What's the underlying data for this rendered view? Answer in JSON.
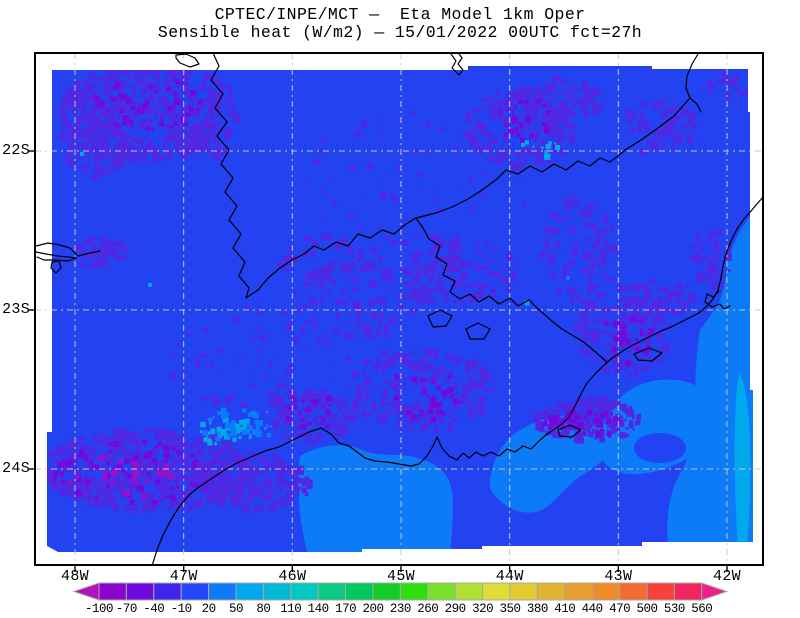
{
  "title": {
    "line1": "CPTEC/INPE/MCT —  Eta Model 1km Oper",
    "line2": "Sensible heat (W/m2) — 15/01/2022 00UTC fct=27h"
  },
  "map_frame": {
    "lat_labels": [
      "22S",
      "23S",
      "24S"
    ],
    "lon_labels": [
      "48W",
      "47W",
      "46W",
      "45W",
      "44W",
      "43W",
      "42W"
    ]
  },
  "colorbar": {
    "unit": "W/m2",
    "labels": [
      "-100",
      "-70",
      "-40",
      "-10",
      "20",
      "50",
      "80",
      "110",
      "140",
      "170",
      "200",
      "230",
      "260",
      "290",
      "320",
      "350",
      "380",
      "410",
      "440",
      "470",
      "500",
      "530",
      "560"
    ],
    "segment_colors": [
      "#8A06CE",
      "#7209DC",
      "#3F24EA",
      "#2547F8",
      "#0D7BF8",
      "#00A8EC",
      "#00B7D4",
      "#00C9C0",
      "#0ACB84",
      "#00C95E",
      "#12CD26",
      "#2FDE0F",
      "#7BE02B",
      "#B0DF35",
      "#DDDC38",
      "#E4CB32",
      "#E3B42F",
      "#EB9E2E",
      "#EE8C2B",
      "#F56A33",
      "#F94139",
      "#F2265F"
    ],
    "arrow_left_color": "#B014B8",
    "arrow_right_color": "#F01E8C",
    "border_color": "#A8A8A8"
  },
  "map": {
    "palette": {
      "base": "#2342F2",
      "patch": "#5227E2",
      "violet": "#7209DC",
      "magenta": "#9A10C8",
      "ocean_light": "#0D7BF8",
      "cyan": "#00A8EC",
      "coast_line": "#000000",
      "grid_line": "#C8C8C8",
      "frame": "#000000",
      "label_text": "#000000"
    }
  }
}
